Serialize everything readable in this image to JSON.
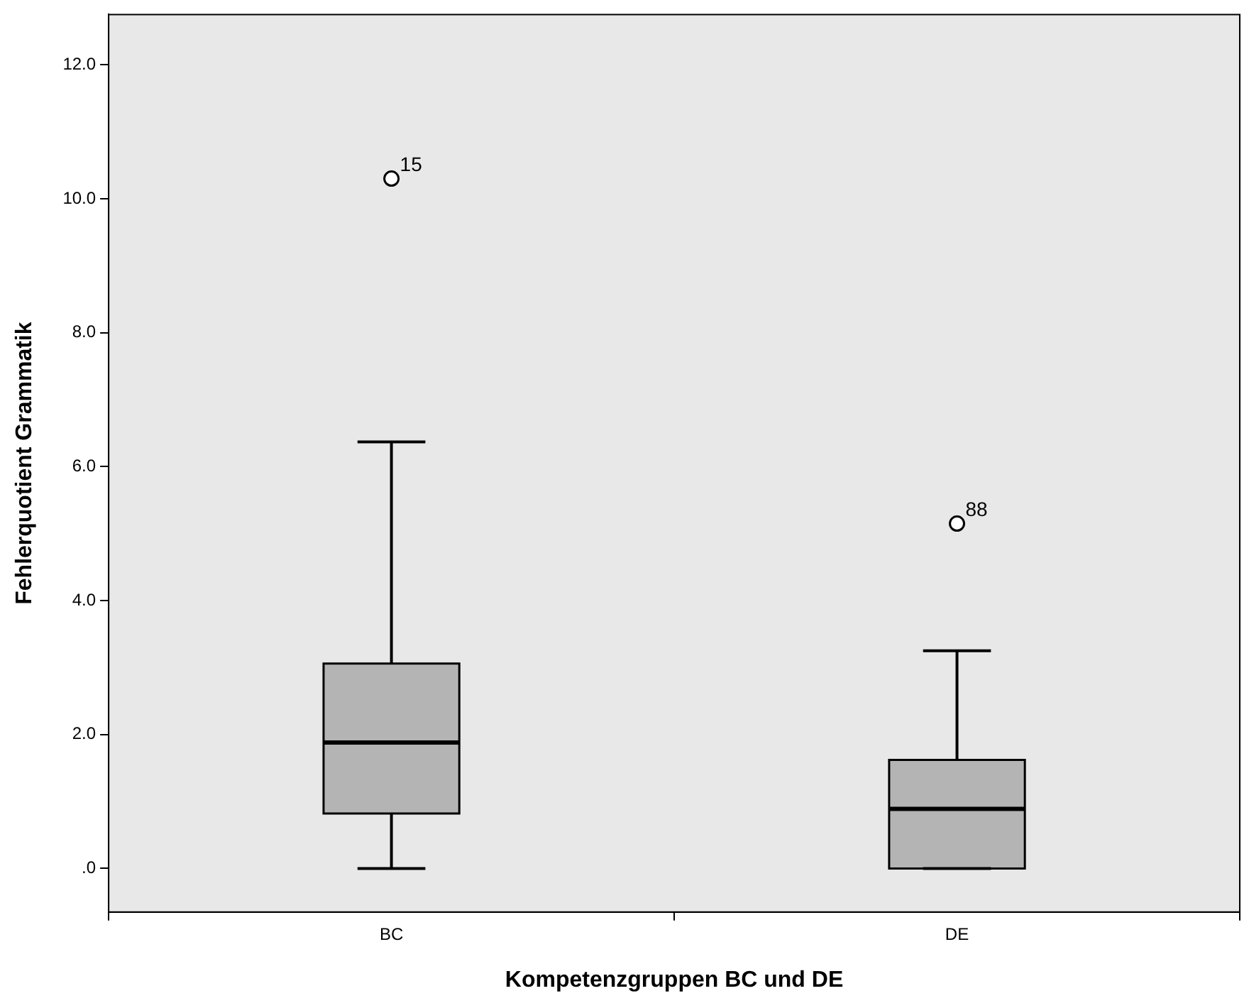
{
  "chart_data": {
    "type": "box",
    "xlabel": "Kompetenzgruppen BC und DE",
    "ylabel": "Fehlerquotient Grammatik",
    "categories": [
      "BC",
      "DE"
    ],
    "color": "#b4b4b4",
    "boxes": [
      {
        "low": 0,
        "q1": 0.82,
        "median": 1.88,
        "q3": 3.06,
        "high": 6.37,
        "outliers": [
          10.3
        ]
      },
      {
        "low": 0,
        "q1": 0,
        "median": 0.89,
        "q3": 1.62,
        "high": 3.25,
        "outliers": [
          5.15
        ]
      }
    ],
    "ylim": [
      -0.65,
      12.75
    ],
    "yticks": [
      {
        "value": 0,
        "label": ".0"
      },
      {
        "value": 2,
        "label": "2.0"
      },
      {
        "value": 4,
        "label": "4.0"
      },
      {
        "value": 6,
        "label": "6.0"
      },
      {
        "value": 8,
        "label": "8.0"
      },
      {
        "value": 10,
        "label": "10.0"
      },
      {
        "value": 12,
        "label": "12.0"
      }
    ],
    "annotations": [
      "15",
      "88"
    ],
    "grid": false,
    "legend": false
  }
}
